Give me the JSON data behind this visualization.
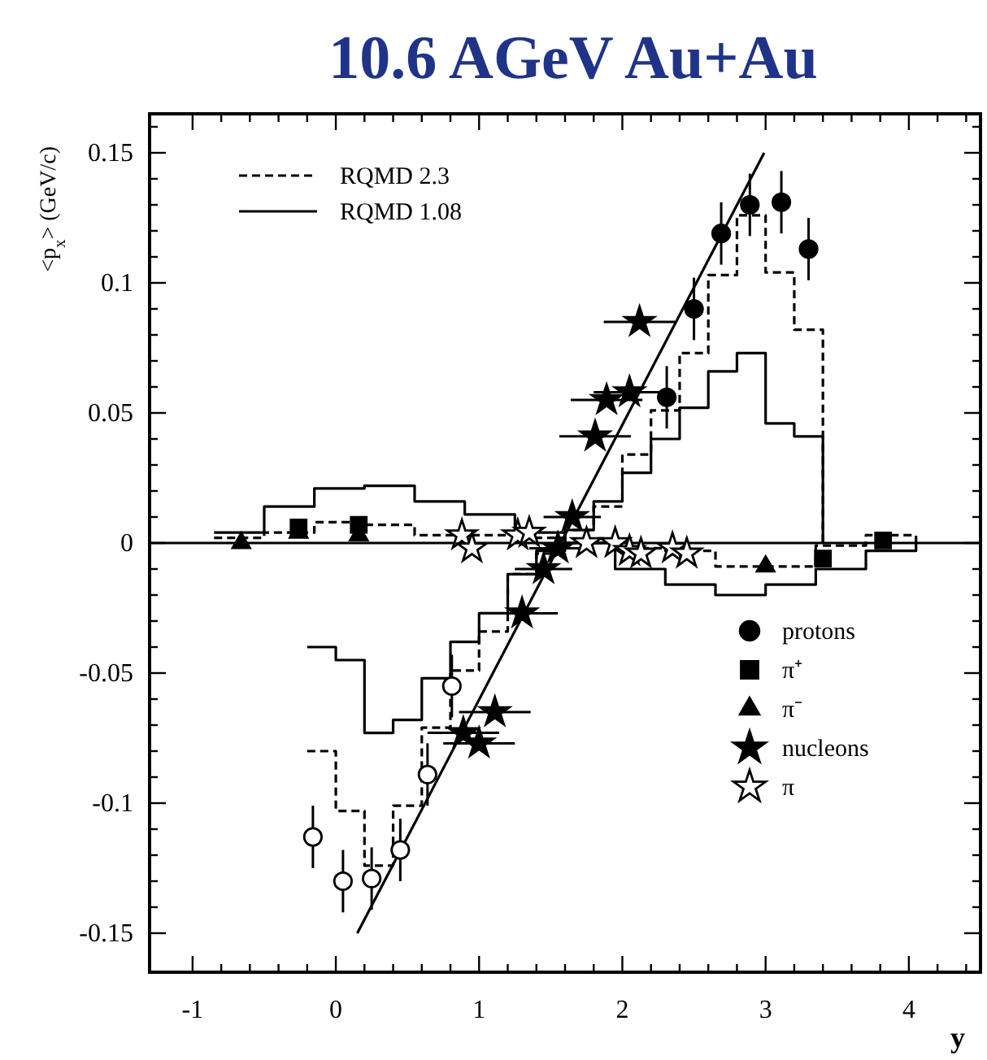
{
  "chart_data": {
    "type": "scatter",
    "title": "10.6 AGeV Au+Au",
    "xlabel": "y",
    "ylabel": "<p$_{x}$> (GeV/c)",
    "xlim": [
      -1.3,
      4.5
    ],
    "ylim": [
      -0.165,
      0.165
    ],
    "xticks": [
      -1,
      {
        "value": -0.8,
        "label": null
      },
      {
        "value": -0.6,
        "label": null
      },
      {
        "value": -0.4,
        "label": null
      },
      {
        "value": -0.2,
        "label": null
      },
      0,
      {
        "value": 0.2,
        "label": null
      },
      {
        "value": 0.4,
        "label": null
      },
      {
        "value": 0.6,
        "label": null
      },
      {
        "value": 0.8,
        "label": null
      },
      1,
      {
        "value": 1.2,
        "label": null
      },
      {
        "value": 1.4,
        "label": null
      },
      {
        "value": 1.6,
        "label": null
      },
      {
        "value": 1.8,
        "label": null
      },
      2,
      {
        "value": 2.2,
        "label": null
      },
      {
        "value": 2.4,
        "label": null
      },
      {
        "value": 2.6,
        "label": null
      },
      {
        "value": 2.8,
        "label": null
      },
      3,
      {
        "value": 3.2,
        "label": null
      },
      {
        "value": 3.4,
        "label": null
      },
      {
        "value": 3.6,
        "label": null
      },
      {
        "value": 3.8,
        "label": null
      },
      4,
      {
        "value": 4.2,
        "label": null
      },
      {
        "value": 4.4,
        "label": null
      }
    ],
    "yticks": [
      -0.15,
      {
        "value": -0.14,
        "label": null
      },
      {
        "value": -0.13,
        "label": null
      },
      {
        "value": -0.12,
        "label": null
      },
      {
        "value": -0.11,
        "label": null
      },
      -0.1,
      {
        "value": -0.09,
        "label": null
      },
      {
        "value": -0.08,
        "label": null
      },
      {
        "value": -0.07,
        "label": null
      },
      {
        "value": -0.06,
        "label": null
      },
      -0.05,
      {
        "value": -0.04,
        "label": null
      },
      {
        "value": -0.03,
        "label": null
      },
      {
        "value": -0.02,
        "label": null
      },
      {
        "value": -0.01,
        "label": null
      },
      0,
      {
        "value": 0.01,
        "label": null
      },
      {
        "value": 0.02,
        "label": null
      },
      {
        "value": 0.03,
        "label": null
      },
      {
        "value": 0.04,
        "label": null
      },
      0.05,
      {
        "value": 0.06,
        "label": null
      },
      {
        "value": 0.07,
        "label": null
      },
      {
        "value": 0.08,
        "label": null
      },
      {
        "value": 0.09,
        "label": null
      },
      0.1,
      {
        "value": 0.11,
        "label": null
      },
      {
        "value": 0.12,
        "label": null
      },
      {
        "value": 0.13,
        "label": null
      },
      {
        "value": 0.14,
        "label": null
      },
      0.15,
      {
        "value": 0.16,
        "label": null
      }
    ],
    "ref_lines": [
      {
        "axis": "y",
        "value": 0,
        "color": "#000000"
      }
    ],
    "legend": "top left",
    "series": [
      {
        "name": "RQMD 2.3",
        "type": "step",
        "color": "#000000",
        "line_style": "dashed",
        "x": [
          -0.2,
          0,
          0.2,
          0.4,
          0.6,
          0.8,
          1.0,
          1.2,
          1.4,
          1.6,
          1.8,
          2.0,
          2.2,
          2.4,
          2.6,
          2.8,
          3.0,
          3.2,
          3.4
        ],
        "values": [
          -0.08,
          -0.103,
          -0.124,
          -0.101,
          -0.071,
          -0.049,
          -0.034,
          -0.012,
          -0.004,
          0.005,
          0.014,
          0.034,
          0.051,
          0.073,
          0.103,
          0.126,
          0.104,
          0.082,
          0
        ]
      },
      {
        "type": "step",
        "color": "#000000",
        "line_style": "dashed",
        "x": [
          -0.85,
          -0.5,
          -0.15,
          0.2,
          0.55,
          0.9,
          1.25,
          1.6,
          1.95,
          2.3,
          2.65,
          3.0,
          3.35,
          3.7,
          4.05
        ],
        "values": [
          0.002,
          0.004,
          0.008,
          0.007,
          0.003,
          0.003,
          0.002,
          0,
          -0.002,
          -0.003,
          -0.009,
          -0.009,
          -0.001,
          0.003,
          0
        ]
      },
      {
        "name": "RQMD 1.08",
        "type": "step",
        "color": "#000000",
        "line_style": "solid",
        "x": [
          -0.2,
          0,
          0.2,
          0.4,
          0.6,
          0.8,
          1.0,
          1.2,
          1.4,
          1.6,
          1.8,
          2.0,
          2.2,
          2.4,
          2.6,
          2.8,
          3.0,
          3.2,
          3.4
        ],
        "values": [
          -0.04,
          -0.045,
          -0.073,
          -0.068,
          -0.052,
          -0.038,
          -0.027,
          -0.012,
          -0.003,
          0.005,
          0.016,
          0.027,
          0.04,
          0.052,
          0.066,
          0.073,
          0.046,
          0.041,
          0
        ]
      },
      {
        "type": "step",
        "color": "#000000",
        "line_style": "solid",
        "x": [
          -0.85,
          -0.5,
          -0.15,
          0.2,
          0.55,
          0.9,
          1.25,
          1.6,
          1.95,
          2.3,
          2.65,
          3.0,
          3.35,
          3.7,
          4.05
        ],
        "values": [
          0.004,
          0.014,
          0.021,
          0.022,
          0.016,
          0.011,
          0.004,
          0,
          -0.01,
          -0.016,
          -0.02,
          -0.016,
          -0.01,
          -0.003,
          0
        ]
      },
      {
        "type": "line",
        "color": "#000000",
        "line_style": "solid",
        "x": [
          0.15,
          2.99
        ],
        "values": [
          -0.15,
          0.15
        ]
      },
      {
        "name": "protons",
        "color": "#000000",
        "marker": "circle",
        "x": [
          2.31,
          2.5,
          2.69,
          2.89,
          3.11,
          3.3
        ],
        "values": [
          0.056,
          0.09,
          0.119,
          0.13,
          0.131,
          0.113
        ],
        "errors": [
          0.012,
          0.012,
          0.012,
          0.012,
          0.012,
          0.012
        ]
      },
      {
        "color": "#ffffff",
        "marker": "circle",
        "x": [
          -0.16,
          0.05,
          0.25,
          0.45,
          0.64,
          0.81
        ],
        "values": [
          -0.113,
          -0.13,
          -0.129,
          -0.118,
          -0.089,
          -0.055
        ],
        "errors": [
          0.012,
          0.012,
          0.012,
          0.012,
          0.012,
          0.012
        ]
      },
      {
        "name": "π⁺",
        "color": "#000000",
        "marker": "square",
        "x": [
          -0.26,
          0.16,
          3.4,
          3.82
        ],
        "values": [
          0.006,
          0.007,
          -0.006,
          0.001
        ]
      },
      {
        "name": "π⁻",
        "color": "#000000",
        "marker": "triangle",
        "x": [
          -0.66,
          -0.26,
          0.16,
          3.0
        ],
        "values": [
          0,
          0.004,
          0.003,
          -0.009
        ]
      },
      {
        "name": "nucleons",
        "color": "#000000",
        "marker": "star",
        "x": [
          0.89,
          1.0,
          1.11,
          1.3,
          1.45,
          1.55,
          1.65,
          1.81,
          1.89,
          2.05,
          2.12
        ],
        "values": [
          -0.073,
          -0.077,
          -0.065,
          -0.027,
          -0.01,
          -0.002,
          0.01,
          0.041,
          0.055,
          0.058,
          0.085
        ],
        "xerrors": [
          0.25,
          0.25,
          0.25,
          0.25,
          0.2,
          0.2,
          0.2,
          0.25,
          0.25,
          0.25,
          0.25
        ]
      },
      {
        "name": "π",
        "color": "#ffffff",
        "marker": "star",
        "x": [
          0.88,
          0.95,
          1.27,
          1.35,
          1.75,
          1.95,
          2.05,
          2.13,
          2.35,
          2.45
        ],
        "values": [
          0.003,
          -0.002,
          0.003,
          0.004,
          0,
          0,
          -0.003,
          -0.004,
          -0.002,
          -0.004
        ]
      }
    ]
  }
}
